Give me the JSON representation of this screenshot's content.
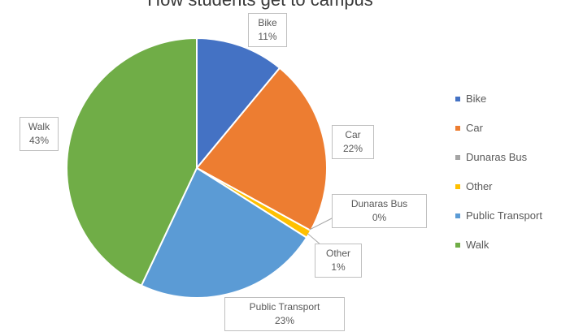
{
  "chart_data": {
    "type": "pie",
    "title": "How students get to campus",
    "categories": [
      "Bike",
      "Car",
      "Dunaras Bus",
      "Other",
      "Public Transport",
      "Walk"
    ],
    "values": [
      11,
      22,
      0,
      1,
      23,
      43
    ],
    "data_labels": [
      {
        "name": "Bike",
        "value": "11%"
      },
      {
        "name": "Car",
        "value": "22%"
      },
      {
        "name": "Dunaras Bus",
        "value": "0%"
      },
      {
        "name": "Other",
        "value": "1%"
      },
      {
        "name": "Public Transport",
        "value": "23%"
      },
      {
        "name": "Walk",
        "value": "43%"
      }
    ],
    "colors": [
      "#4472C4",
      "#ED7D31",
      "#A5A5A5",
      "#FFC000",
      "#5B9BD5",
      "#70AD47"
    ],
    "legend": {
      "placement": "right",
      "entries": [
        "Bike",
        "Car",
        "Dunaras Bus",
        "Other",
        "Public Transport",
        "Walk"
      ]
    }
  }
}
